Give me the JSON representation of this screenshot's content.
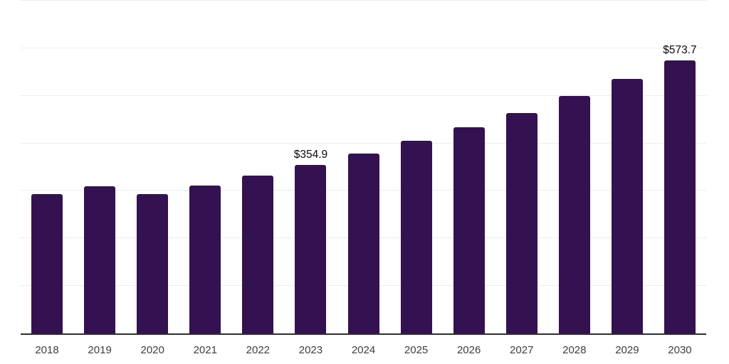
{
  "chart_data": {
    "type": "bar",
    "title": "",
    "xlabel": "",
    "ylabel": "",
    "categories": [
      "2018",
      "2019",
      "2020",
      "2021",
      "2022",
      "2023",
      "2024",
      "2025",
      "2026",
      "2027",
      "2028",
      "2029",
      "2030"
    ],
    "values": [
      292.5,
      308.9,
      293.6,
      311.4,
      332.2,
      354.9,
      378.5,
      405.0,
      433.4,
      464.0,
      500.1,
      535.5,
      573.7
    ],
    "point_labels": [
      "",
      "",
      "",
      "",
      "",
      "$354.9",
      "",
      "",
      "",
      "",
      "",
      "",
      "$573.7"
    ],
    "ylim": [
      0,
      700
    ],
    "ytick_interval": 100,
    "grid": "horizontal",
    "legend": "none",
    "colors": {
      "bar": "#341150",
      "gridline": "#ededed",
      "axis": "#2e2e2e",
      "tick_label": "#3d3d3d",
      "value_label": "#0a0a0a",
      "background": "#ffffff"
    }
  }
}
